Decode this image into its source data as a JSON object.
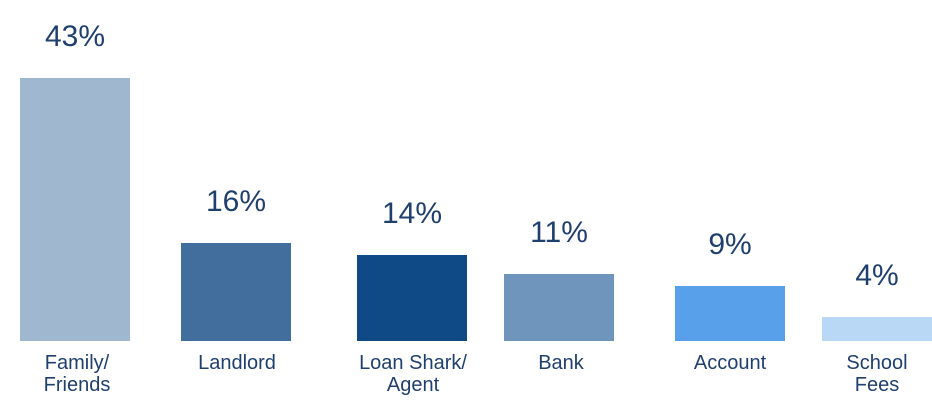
{
  "chart_data": {
    "type": "bar",
    "categories": [
      {
        "label": "Family/\nFriends",
        "value": 43,
        "value_label": "43%",
        "color": "#a0b7d0"
      },
      {
        "label": "Landlord",
        "value": 16,
        "value_label": "16%",
        "color": "#416e9d"
      },
      {
        "label": "Loan Shark/\nAgent",
        "value": 14,
        "value_label": "14%",
        "color": "#0f4a86"
      },
      {
        "label": "Bank",
        "value": 11,
        "value_label": "11%",
        "color": "#6f95bc"
      },
      {
        "label": "Account",
        "value": 9,
        "value_label": "9%",
        "color": "#58a0ea"
      },
      {
        "label": "School\nFees",
        "value": 4,
        "value_label": "4%",
        "color": "#b9d8f5"
      }
    ],
    "title": "",
    "xlabel": "",
    "ylabel": "",
    "ylim": [
      0,
      43
    ],
    "grid": false,
    "legend": "none"
  }
}
